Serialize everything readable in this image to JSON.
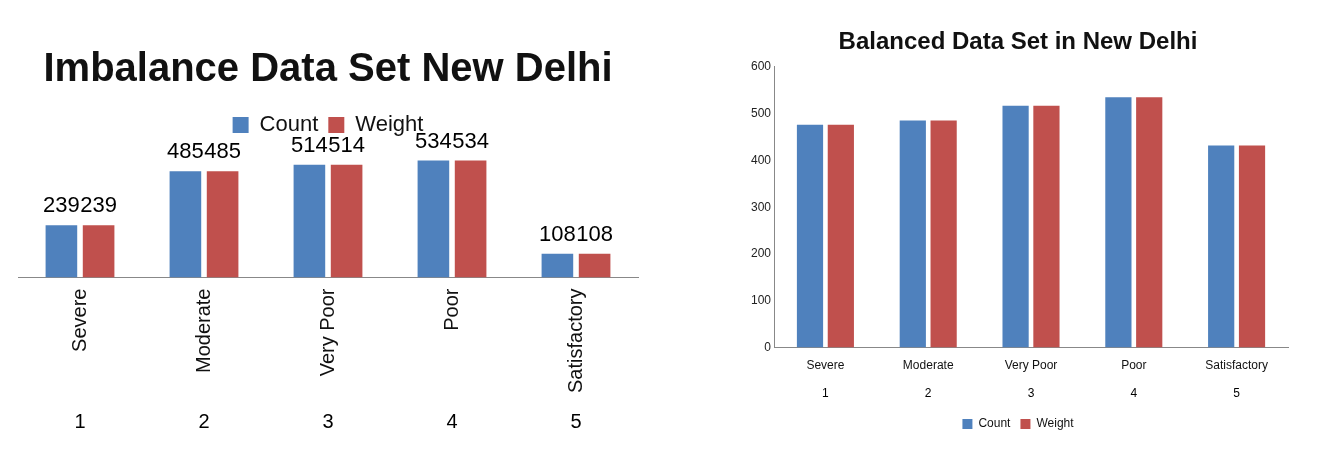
{
  "chart_data": [
    {
      "type": "bar",
      "title": "Imbalance Data Set New Delhi",
      "categories": [
        "Severe",
        "Moderate",
        "Very Poor",
        "Poor",
        "Satisfactory"
      ],
      "series": [
        {
          "name": "Count",
          "color": "#4f81bd",
          "values": [
            239,
            485,
            514,
            534,
            108
          ]
        },
        {
          "name": "Weight",
          "color": "#c0504d",
          "values": [
            239,
            485,
            514,
            534,
            108
          ]
        }
      ],
      "data_labels": true,
      "legend": "top",
      "grid": false,
      "tick_labels": "x",
      "annotations": [
        "1",
        "2",
        "3",
        "4",
        "5"
      ]
    },
    {
      "type": "bar",
      "title": "Balanced Data Set in New Delhi",
      "categories": [
        "Severe",
        "Moderate",
        "Very Poor",
        "Poor",
        "Satisfactory"
      ],
      "series": [
        {
          "name": "Count",
          "color": "#4f81bd",
          "values": [
            476,
            485,
            517,
            535,
            432
          ]
        },
        {
          "name": "Weight",
          "color": "#c0504d",
          "values": [
            476,
            485,
            517,
            535,
            432
          ]
        }
      ],
      "ylim": [
        0,
        600
      ],
      "yticks": [
        0,
        100,
        200,
        300,
        400,
        500,
        600
      ],
      "legend": "bottom",
      "grid": false,
      "annotations": [
        "1",
        "2",
        "3",
        "4",
        "5"
      ]
    }
  ]
}
